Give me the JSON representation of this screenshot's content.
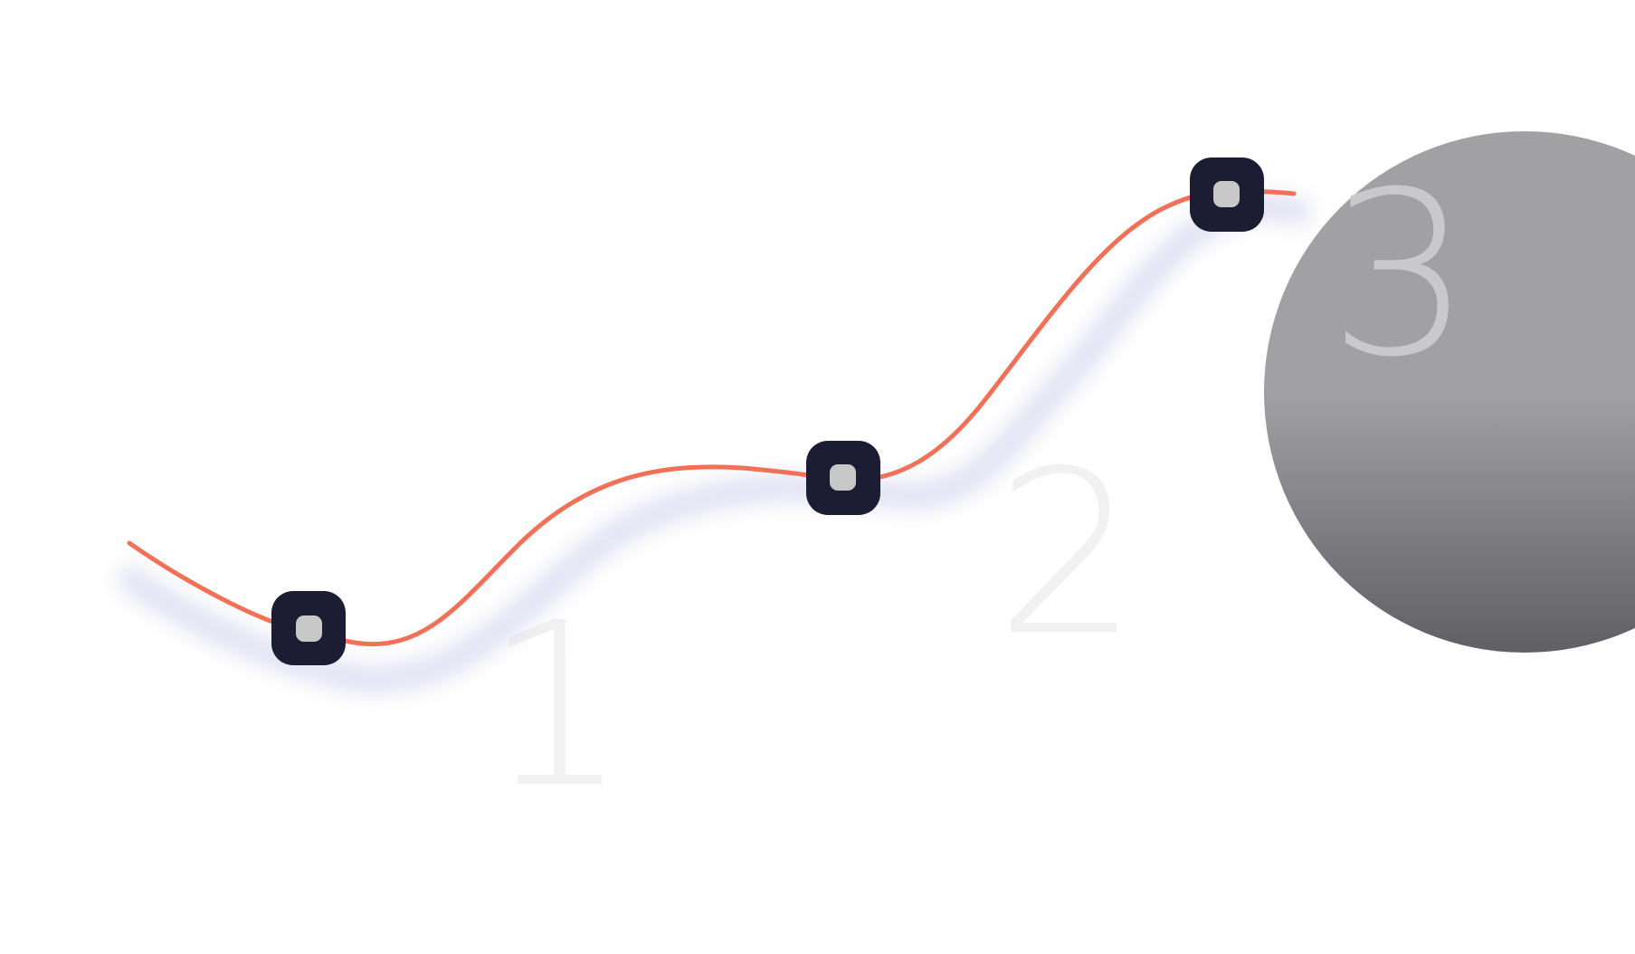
{
  "steps": [
    {
      "number": "1"
    },
    {
      "number": "2"
    },
    {
      "number": "3"
    }
  ],
  "colors": {
    "path": "#f07158",
    "path_shadow": "#d9d9f2",
    "marker_fill": "#1c1c33",
    "marker_core": "#c8c8c8",
    "step_number_light": "#f1f1f1",
    "step_number_on_disc": "#c9c9cb",
    "disc_top": "#a1a1a4",
    "disc_bottom": "#5f5f64"
  },
  "icons": [
    "waypoint-marker-icon"
  ]
}
